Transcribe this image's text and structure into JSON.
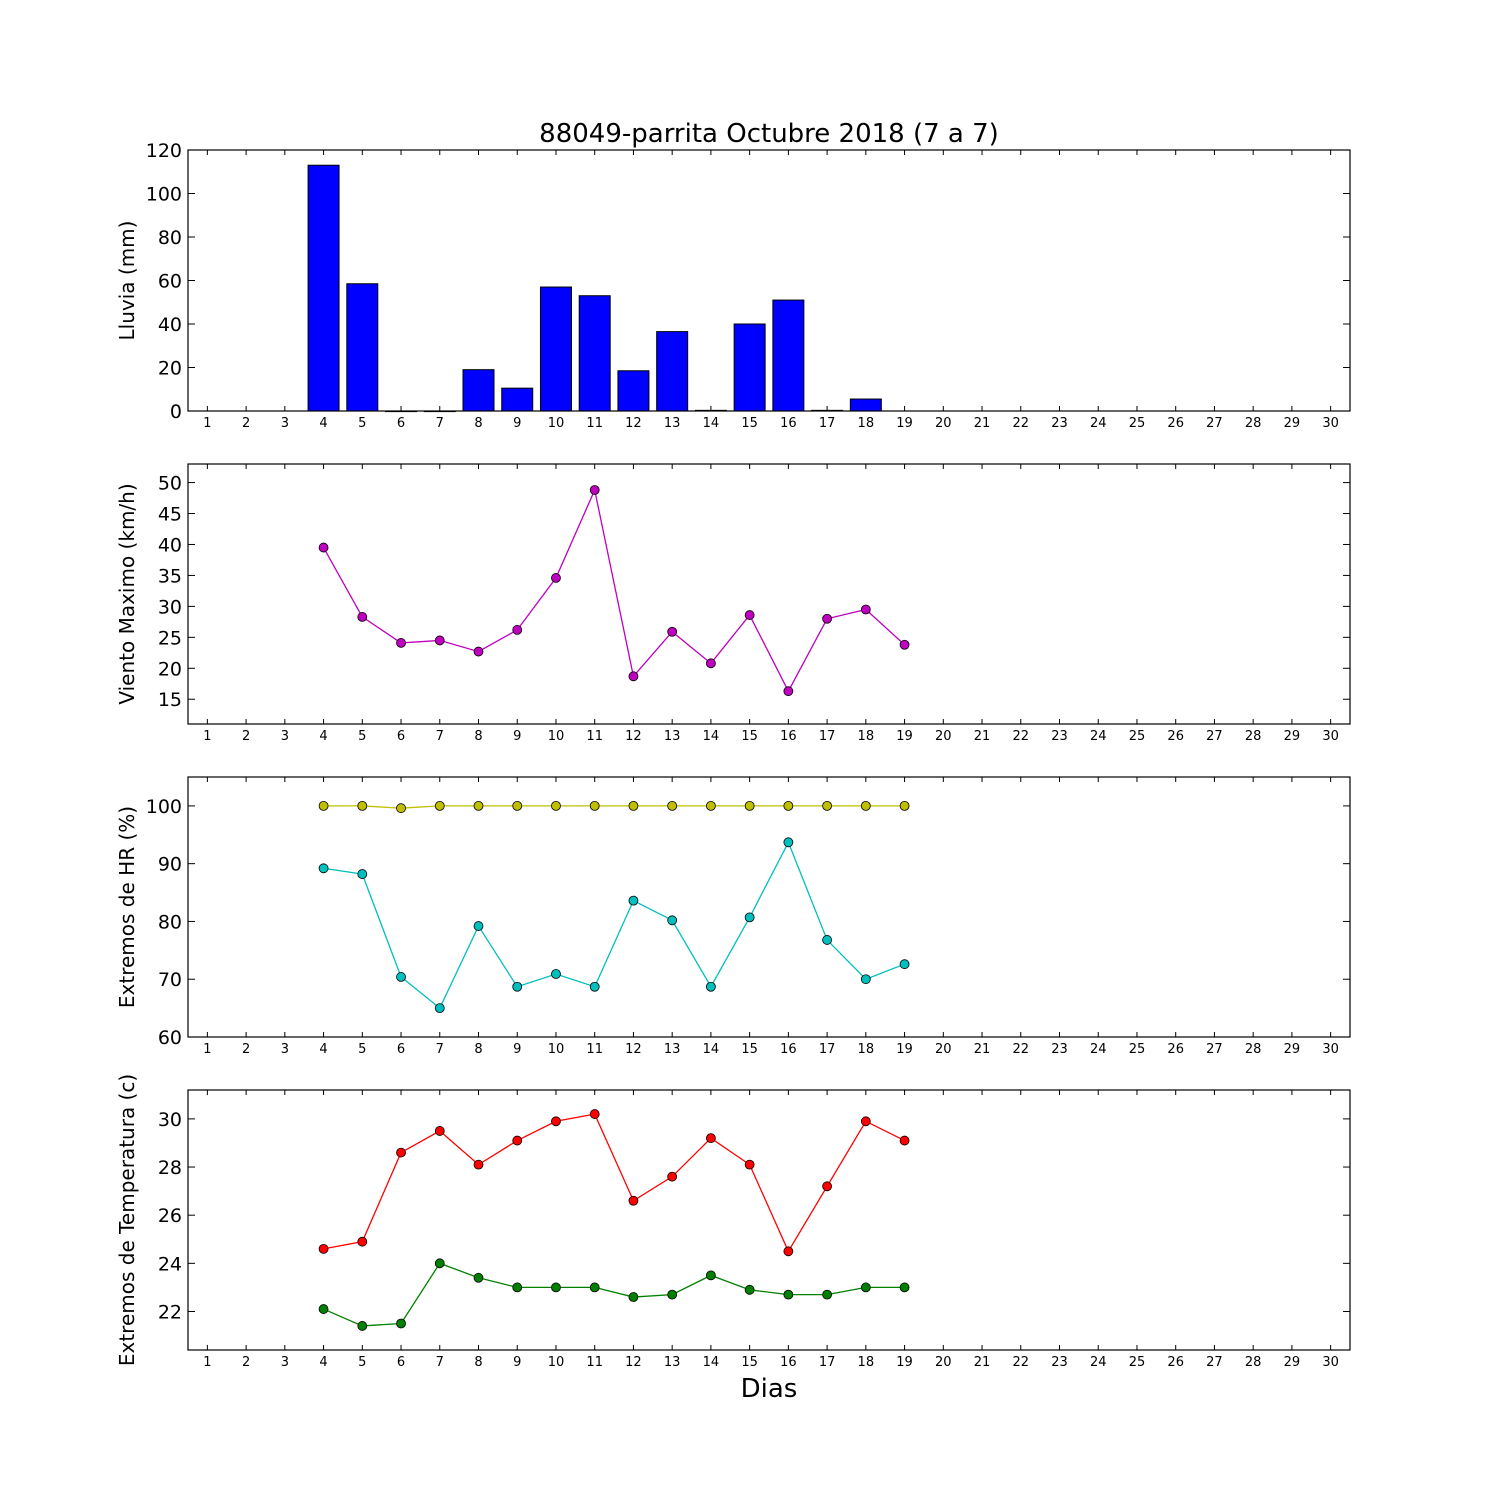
{
  "title": "88049-parrita Octubre 2018  (7 a 7)",
  "xlabel": "Dias",
  "chart_data": [
    {
      "type": "bar",
      "ylabel": "Lluvia (mm)",
      "ylim": [
        0,
        120
      ],
      "yticks": [
        0,
        20,
        40,
        60,
        80,
        100,
        120
      ],
      "x": [
        4,
        5,
        6,
        7,
        8,
        9,
        10,
        11,
        12,
        13,
        14,
        15,
        16,
        17,
        18
      ],
      "series": [
        {
          "values": [
            113,
            58.5,
            0,
            0,
            19,
            10.5,
            57,
            53,
            18.5,
            36.5,
            0.3,
            40,
            51,
            0.3,
            5.5
          ],
          "color": "#0000ff"
        }
      ],
      "xticks": [
        1,
        2,
        3,
        4,
        5,
        6,
        7,
        8,
        9,
        10,
        11,
        12,
        13,
        14,
        15,
        16,
        17,
        18,
        19,
        20,
        21,
        22,
        23,
        24,
        25,
        26,
        27,
        28,
        29,
        30
      ]
    },
    {
      "type": "line",
      "ylabel": "Viento Maximo (km/h)",
      "ylim": [
        11,
        53
      ],
      "yticks": [
        15,
        20,
        25,
        30,
        35,
        40,
        45,
        50
      ],
      "x": [
        4,
        5,
        6,
        7,
        8,
        9,
        10,
        11,
        12,
        13,
        14,
        15,
        16,
        17,
        18,
        19
      ],
      "series": [
        {
          "values": [
            39.5,
            28.3,
            24.1,
            24.5,
            22.7,
            26.2,
            34.6,
            48.8,
            18.7,
            25.9,
            20.8,
            28.6,
            16.3,
            28.0,
            29.5,
            23.8
          ],
          "color": "#bf00bf"
        }
      ],
      "xticks": [
        1,
        2,
        3,
        4,
        5,
        6,
        7,
        8,
        9,
        10,
        11,
        12,
        13,
        14,
        15,
        16,
        17,
        18,
        19,
        20,
        21,
        22,
        23,
        24,
        25,
        26,
        27,
        28,
        29,
        30
      ]
    },
    {
      "type": "line",
      "ylabel": "Extremos de HR (%)",
      "ylim": [
        60,
        105
      ],
      "yticks": [
        60,
        70,
        80,
        90,
        100
      ],
      "x": [
        4,
        5,
        6,
        7,
        8,
        9,
        10,
        11,
        12,
        13,
        14,
        15,
        16,
        17,
        18,
        19
      ],
      "series": [
        {
          "values": [
            100,
            100,
            99.6,
            100,
            100,
            100,
            100,
            100,
            100,
            100,
            100,
            100,
            100,
            100,
            100,
            100
          ],
          "color": "#bfbf00"
        },
        {
          "values": [
            89.2,
            88.2,
            70.4,
            65.0,
            79.2,
            68.7,
            70.9,
            68.7,
            83.6,
            80.2,
            68.7,
            80.7,
            93.7,
            76.8,
            70.0,
            72.6
          ],
          "color": "#00bfbf"
        }
      ],
      "xticks": [
        1,
        2,
        3,
        4,
        5,
        6,
        7,
        8,
        9,
        10,
        11,
        12,
        13,
        14,
        15,
        16,
        17,
        18,
        19,
        20,
        21,
        22,
        23,
        24,
        25,
        26,
        27,
        28,
        29,
        30
      ]
    },
    {
      "type": "line",
      "ylabel": "Extremos de Temperatura (c)",
      "ylim": [
        20.4,
        31.2
      ],
      "yticks": [
        22,
        24,
        26,
        28,
        30
      ],
      "x": [
        4,
        5,
        6,
        7,
        8,
        9,
        10,
        11,
        12,
        13,
        14,
        15,
        16,
        17,
        18,
        19
      ],
      "series": [
        {
          "values": [
            24.6,
            24.9,
            28.6,
            29.5,
            28.1,
            29.1,
            29.9,
            30.2,
            26.6,
            27.6,
            29.2,
            28.1,
            24.5,
            27.2,
            29.9,
            29.1
          ],
          "color": "#ff0000"
        },
        {
          "values": [
            22.1,
            21.4,
            21.5,
            24.0,
            23.4,
            23.0,
            23.0,
            23.0,
            22.6,
            22.7,
            23.5,
            22.9,
            22.7,
            22.7,
            23.0,
            23.0
          ],
          "color": "#008000"
        }
      ],
      "xticks": [
        1,
        2,
        3,
        4,
        5,
        6,
        7,
        8,
        9,
        10,
        11,
        12,
        13,
        14,
        15,
        16,
        17,
        18,
        19,
        20,
        21,
        22,
        23,
        24,
        25,
        26,
        27,
        28,
        29,
        30
      ]
    }
  ]
}
